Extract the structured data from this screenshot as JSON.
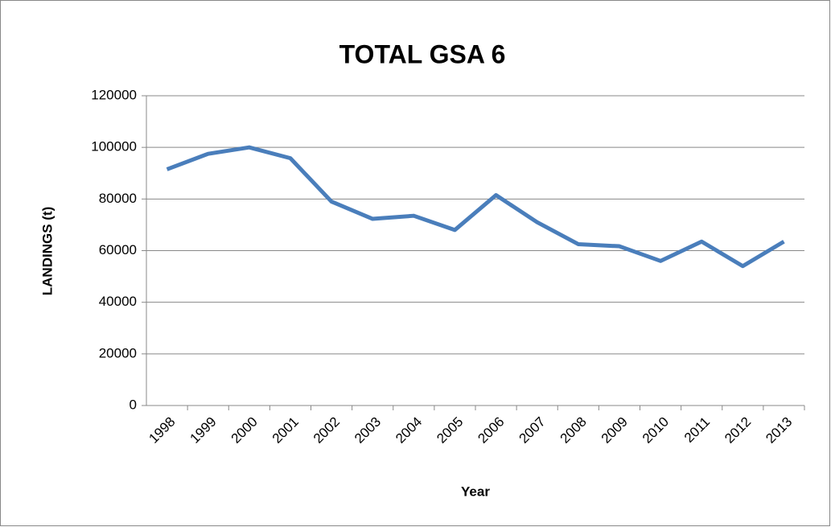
{
  "chart_data": {
    "type": "line",
    "title": "TOTAL GSA 6",
    "x_label": "Year",
    "y_label": "LANDINGS (t)",
    "categories": [
      "1998",
      "1999",
      "2000",
      "2001",
      "2002",
      "2003",
      "2004",
      "2005",
      "2006",
      "2007",
      "2008",
      "2009",
      "2010",
      "2011",
      "2012",
      "2013"
    ],
    "series": [
      {
        "name": "TOTAL GSA 6",
        "color": "#4a7ebb",
        "values": [
          91500,
          97500,
          100000,
          95800,
          79000,
          72300,
          73500,
          68000,
          81500,
          71000,
          62500,
          61700,
          56000,
          63500,
          54000,
          63500
        ]
      }
    ],
    "ylim": [
      0,
      120000
    ],
    "yticks": [
      0,
      20000,
      40000,
      60000,
      80000,
      100000,
      120000
    ],
    "grid": true
  }
}
